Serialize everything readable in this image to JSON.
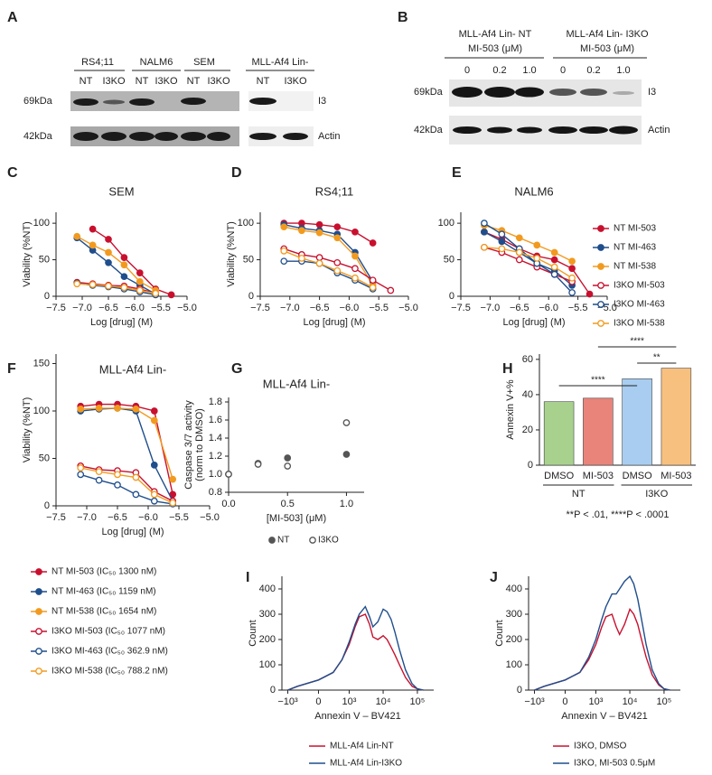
{
  "blots": [
    {
      "panel_label": "A",
      "groups": [
        "RS4;11",
        "NALM6",
        "SEM",
        "MLL-Af4 Lin-"
      ],
      "lanes": [
        "NT",
        "I3KO",
        "NT",
        "I3KO",
        "NT",
        "I3KO",
        "NT",
        "I3KO"
      ],
      "markers": [
        "69kDa",
        "42kDa"
      ],
      "proteins": [
        "I3",
        "Actin"
      ]
    },
    {
      "panel_label": "B",
      "groups": [
        {
          "name": "MLL-Af4 Lin- NT",
          "unit": "MI-503 (μM)"
        },
        {
          "name": "MLL-Af4 Lin- I3KO",
          "unit": "MI-503 (μM)"
        }
      ],
      "lanes": [
        "0",
        "0.2",
        "1.0",
        "0",
        "0.2",
        "1.0"
      ],
      "markers": [
        "69kDa",
        "42kDa"
      ],
      "proteins": [
        "I3",
        "Actin"
      ]
    }
  ],
  "chart_data": [
    {
      "panel_label": "C",
      "type": "line",
      "title": "SEM",
      "x_label": "Log [drug] (M)",
      "y_label": "Viability (%NT)",
      "markers": true,
      "xlim": [
        -7.5,
        -5.0
      ],
      "ylim": [
        0,
        115
      ],
      "xticks": [
        {
          "value": -7.5,
          "label": "−7.5"
        },
        {
          "value": -7,
          "label": "−7.0"
        },
        {
          "value": -6.5,
          "label": "−6.5"
        },
        {
          "value": -6,
          "label": "−6.0"
        },
        {
          "value": -5.5,
          "label": "−5.5"
        },
        {
          "value": -5,
          "label": "−5.0"
        }
      ],
      "yticks": [
        0,
        50,
        100
      ],
      "x": [
        -7.1,
        -6.8,
        -6.5,
        -6.2,
        -5.9,
        -5.6,
        -5.3
      ],
      "series": [
        {
          "color": "#c8102e",
          "marker": "filled",
          "values": [
            null,
            92,
            78,
            53,
            32,
            10,
            2
          ]
        },
        {
          "color": "#1f4e8c",
          "marker": "filled",
          "values": [
            80,
            63,
            46,
            27,
            15,
            3,
            null
          ]
        },
        {
          "color": "#f29a1f",
          "marker": "filled",
          "values": [
            82,
            70,
            60,
            43,
            20,
            8,
            null
          ]
        },
        {
          "color": "#c8102e",
          "marker": "open",
          "values": [
            19,
            17,
            15,
            14,
            10,
            4,
            null
          ]
        },
        {
          "color": "#1f4e8c",
          "marker": "open",
          "values": [
            18,
            15,
            13,
            10,
            6,
            2,
            null
          ]
        },
        {
          "color": "#f29a1f",
          "marker": "open",
          "values": [
            17,
            16,
            14,
            12,
            8,
            4,
            null
          ]
        }
      ]
    },
    {
      "panel_label": "D",
      "type": "line",
      "title": "RS4;11",
      "x_label": "Log [drug] (M)",
      "y_label": "Viability (%NT)",
      "markers": true,
      "xlim": [
        -7.5,
        -5.0
      ],
      "ylim": [
        0,
        115
      ],
      "xticks": [
        {
          "value": -7.5,
          "label": "−7.5"
        },
        {
          "value": -7,
          "label": "−7.0"
        },
        {
          "value": -6.5,
          "label": "−6.5"
        },
        {
          "value": -6,
          "label": "−6.0"
        },
        {
          "value": -5.5,
          "label": "−5.5"
        },
        {
          "value": -5,
          "label": "−5.0"
        }
      ],
      "yticks": [
        0,
        50,
        100
      ],
      "x": [
        -7.1,
        -6.8,
        -6.5,
        -6.2,
        -5.9,
        -5.6,
        -5.3
      ],
      "series": [
        {
          "color": "#c8102e",
          "marker": "filled",
          "values": [
            100,
            100,
            98,
            95,
            88,
            73,
            null
          ]
        },
        {
          "color": "#1f4e8c",
          "marker": "filled",
          "values": [
            98,
            93,
            90,
            85,
            60,
            20,
            null
          ]
        },
        {
          "color": "#f29a1f",
          "marker": "filled",
          "values": [
            95,
            90,
            87,
            80,
            55,
            15,
            null
          ]
        },
        {
          "color": "#c8102e",
          "marker": "open",
          "values": [
            65,
            57,
            53,
            46,
            38,
            22,
            8
          ]
        },
        {
          "color": "#1f4e8c",
          "marker": "open",
          "values": [
            48,
            48,
            45,
            32,
            22,
            10,
            null
          ]
        },
        {
          "color": "#f29a1f",
          "marker": "open",
          "values": [
            62,
            52,
            45,
            35,
            25,
            12,
            null
          ]
        }
      ]
    },
    {
      "panel_label": "E",
      "type": "line",
      "title": "NALM6",
      "x_label": "Log [drug] (M)",
      "markers": true,
      "legend": "right",
      "xlim": [
        -7.5,
        -5.0
      ],
      "ylim": [
        0,
        115
      ],
      "xticks": [
        {
          "value": -7.5,
          "label": "−7.5"
        },
        {
          "value": -7,
          "label": "−7.0"
        },
        {
          "value": -6.5,
          "label": "−6.5"
        },
        {
          "value": -6,
          "label": "−6.0"
        },
        {
          "value": -5.5,
          "label": "−5.5"
        },
        {
          "value": -5,
          "label": "−5.0"
        }
      ],
      "yticks": [
        0,
        50,
        100
      ],
      "x": [
        -7.1,
        -6.8,
        -6.5,
        -6.2,
        -5.9,
        -5.6,
        -5.3
      ],
      "series": [
        {
          "name": "NT MI-503",
          "color": "#c8102e",
          "marker": "filled",
          "values": [
            88,
            78,
            65,
            55,
            50,
            38,
            3
          ]
        },
        {
          "name": "NT MI-463",
          "color": "#1f4e8c",
          "marker": "filled",
          "values": [
            88,
            75,
            60,
            45,
            35,
            15,
            null
          ]
        },
        {
          "name": "NT MI-538",
          "color": "#f29a1f",
          "marker": "filled",
          "values": [
            97,
            90,
            80,
            70,
            60,
            48,
            null
          ]
        },
        {
          "name": "I3KO MI-503",
          "color": "#c8102e",
          "marker": "open",
          "values": [
            67,
            60,
            50,
            40,
            30,
            20,
            null
          ]
        },
        {
          "name": "I3KO MI-463",
          "color": "#1f4e8c",
          "marker": "open",
          "values": [
            100,
            85,
            65,
            45,
            30,
            5,
            null
          ]
        },
        {
          "name": "I3KO MI-538",
          "color": "#f29a1f",
          "marker": "open",
          "values": [
            67,
            65,
            60,
            52,
            40,
            25,
            null
          ]
        }
      ]
    },
    {
      "panel_label": "F",
      "type": "line",
      "title": "MLL-Af4 Lin-",
      "x_label": "Log [drug] (M)",
      "y_label": "Viability (%NT)",
      "markers": true,
      "legend": "below",
      "xlim": [
        -7.5,
        -5.0
      ],
      "ylim": [
        0,
        160
      ],
      "xticks": [
        {
          "value": -7.5,
          "label": "−7.5"
        },
        {
          "value": -7,
          "label": "−7.0"
        },
        {
          "value": -6.5,
          "label": "−6.5"
        },
        {
          "value": -6,
          "label": "−6.0"
        },
        {
          "value": -5.5,
          "label": "−5.5"
        },
        {
          "value": -5,
          "label": "−5.0"
        }
      ],
      "yticks": [
        0,
        50,
        100,
        150
      ],
      "x": [
        -7.1,
        -6.8,
        -6.5,
        -6.2,
        -5.9,
        -5.6
      ],
      "series": [
        {
          "name": "NT MI-503 (IC₅₀ 1300 nM)",
          "color": "#c8102e",
          "marker": "filled",
          "values": [
            105,
            107,
            107,
            105,
            100,
            12
          ]
        },
        {
          "name": "NT MI-463 (IC₅₀ 1159 nM)",
          "color": "#1f4e8c",
          "marker": "filled",
          "values": [
            100,
            102,
            103,
            100,
            43,
            5
          ]
        },
        {
          "name": "NT MI-538 (IC₅₀ 1654 nM)",
          "color": "#f29a1f",
          "marker": "filled",
          "values": [
            102,
            103,
            103,
            102,
            90,
            28
          ]
        },
        {
          "name": "I3KO MI-503 (IC₅₀ 1077 nM)",
          "color": "#c8102e",
          "marker": "open",
          "values": [
            42,
            38,
            37,
            35,
            15,
            5
          ]
        },
        {
          "name": "I3KO MI-463 (IC₅₀ 362.9 nM)",
          "color": "#1f4e8c",
          "marker": "open",
          "values": [
            33,
            27,
            22,
            12,
            5,
            2
          ]
        },
        {
          "name": "I3KO MI-538 (IC₅₀ 788.2 nM)",
          "color": "#f29a1f",
          "marker": "open",
          "values": [
            40,
            36,
            33,
            30,
            12,
            3
          ]
        }
      ]
    },
    {
      "panel_label": "G",
      "type": "scatter",
      "title": "MLL-Af4 Lin-",
      "x_label": "[MI-503] (μM)",
      "y_label": [
        "Caspase 3/7 activity",
        "(norm to DMSO)"
      ],
      "legend": "below-inline",
      "xlim": [
        0,
        1.15
      ],
      "ylim": [
        0.8,
        1.85
      ],
      "xticks": [
        {
          "value": 0,
          "label": "0.0"
        },
        0.5,
        {
          "value": 1,
          "label": "1.0"
        }
      ],
      "yticks": [
        0.8,
        {
          "value": 1,
          "label": "1.0"
        },
        1.2,
        1.4,
        1.6,
        1.8
      ],
      "x": [
        0,
        0.25,
        0.5,
        1.0
      ],
      "series": [
        {
          "name": "NT",
          "color": "#555555",
          "marker": "filled",
          "values": [
            1.0,
            1.12,
            1.18,
            1.22
          ]
        },
        {
          "name": "I3KO",
          "color": "#555555",
          "marker": "open",
          "values": [
            1.0,
            1.11,
            1.09,
            1.57
          ]
        }
      ]
    },
    {
      "panel_label": "H",
      "type": "bar",
      "y_label": "Annexin V+%",
      "ylim": [
        0,
        63
      ],
      "yticks": [
        0,
        20,
        40,
        60
      ],
      "categories": [
        "DMSO",
        "MI-503",
        "DMSO",
        "MI-503"
      ],
      "groups": [
        "NT",
        "I3KO"
      ],
      "values": [
        36,
        38,
        49,
        55
      ],
      "colors": [
        "#a9d18e",
        "#e9847a",
        "#a8cdf0",
        "#f8c07f"
      ],
      "annotations": [
        "****",
        "**",
        "****"
      ],
      "note": "**P < .01, ****P < .0001"
    },
    {
      "panel_label": "I",
      "type": "line",
      "x_label": "Annexin V – BV421",
      "y_label": "Count",
      "legend": "below",
      "x_scale": "biexponential",
      "xlim": [
        -1500,
        300000
      ],
      "ylim": [
        0,
        450
      ],
      "xticks": [
        {
          "value": -1000,
          "label": "−10³"
        },
        0,
        {
          "value": 1000,
          "label": "10³"
        },
        {
          "value": 10000,
          "label": "10⁴"
        },
        {
          "value": 100000,
          "label": "10⁵"
        }
      ],
      "yticks": [
        0,
        100,
        200,
        300,
        400
      ],
      "x": [
        -1000,
        -500,
        0,
        300,
        600,
        1000,
        1500,
        2000,
        3000,
        4000,
        5000,
        7000,
        10000,
        13000,
        17000,
        22000,
        30000,
        45000,
        70000,
        100000,
        150000
      ],
      "series": [
        {
          "name": "MLL-Af4 Lin-NT",
          "color": "#c8102e",
          "values": [
            0,
            15,
            40,
            70,
            120,
            180,
            250,
            290,
            300,
            260,
            210,
            200,
            215,
            200,
            170,
            140,
            100,
            50,
            15,
            5,
            0
          ]
        },
        {
          "name": "MLL-Af4 Lin-I3KO",
          "color": "#1f4e8c",
          "values": [
            0,
            15,
            40,
            70,
            120,
            190,
            260,
            300,
            330,
            290,
            250,
            270,
            320,
            310,
            280,
            230,
            160,
            80,
            25,
            5,
            0
          ]
        }
      ]
    },
    {
      "panel_label": "J",
      "type": "line",
      "x_label": "Annexin V – BV421",
      "y_label": "Count",
      "legend": "below",
      "x_scale": "biexponential",
      "xlim": [
        -1500,
        300000
      ],
      "ylim": [
        0,
        450
      ],
      "xticks": [
        {
          "value": -1000,
          "label": "−10³"
        },
        0,
        {
          "value": 1000,
          "label": "10³"
        },
        {
          "value": 10000,
          "label": "10⁴"
        },
        {
          "value": 100000,
          "label": "10⁵"
        }
      ],
      "yticks": [
        0,
        100,
        200,
        300,
        400
      ],
      "x": [
        -1000,
        -500,
        0,
        300,
        600,
        1000,
        1500,
        2000,
        3000,
        4000,
        5000,
        7000,
        10000,
        13000,
        17000,
        22000,
        30000,
        45000,
        70000,
        100000,
        150000
      ],
      "series": [
        {
          "name": "I3KO, DMSO",
          "color": "#c8102e",
          "values": [
            0,
            15,
            40,
            70,
            120,
            180,
            250,
            290,
            300,
            250,
            220,
            260,
            320,
            300,
            260,
            200,
            130,
            60,
            20,
            5,
            0
          ]
        },
        {
          "name": "I3KO, MI-503 0.5μM",
          "color": "#1f4e8c",
          "values": [
            0,
            15,
            40,
            70,
            130,
            200,
            280,
            330,
            380,
            380,
            400,
            430,
            450,
            420,
            360,
            280,
            180,
            80,
            25,
            5,
            0
          ]
        }
      ]
    }
  ]
}
